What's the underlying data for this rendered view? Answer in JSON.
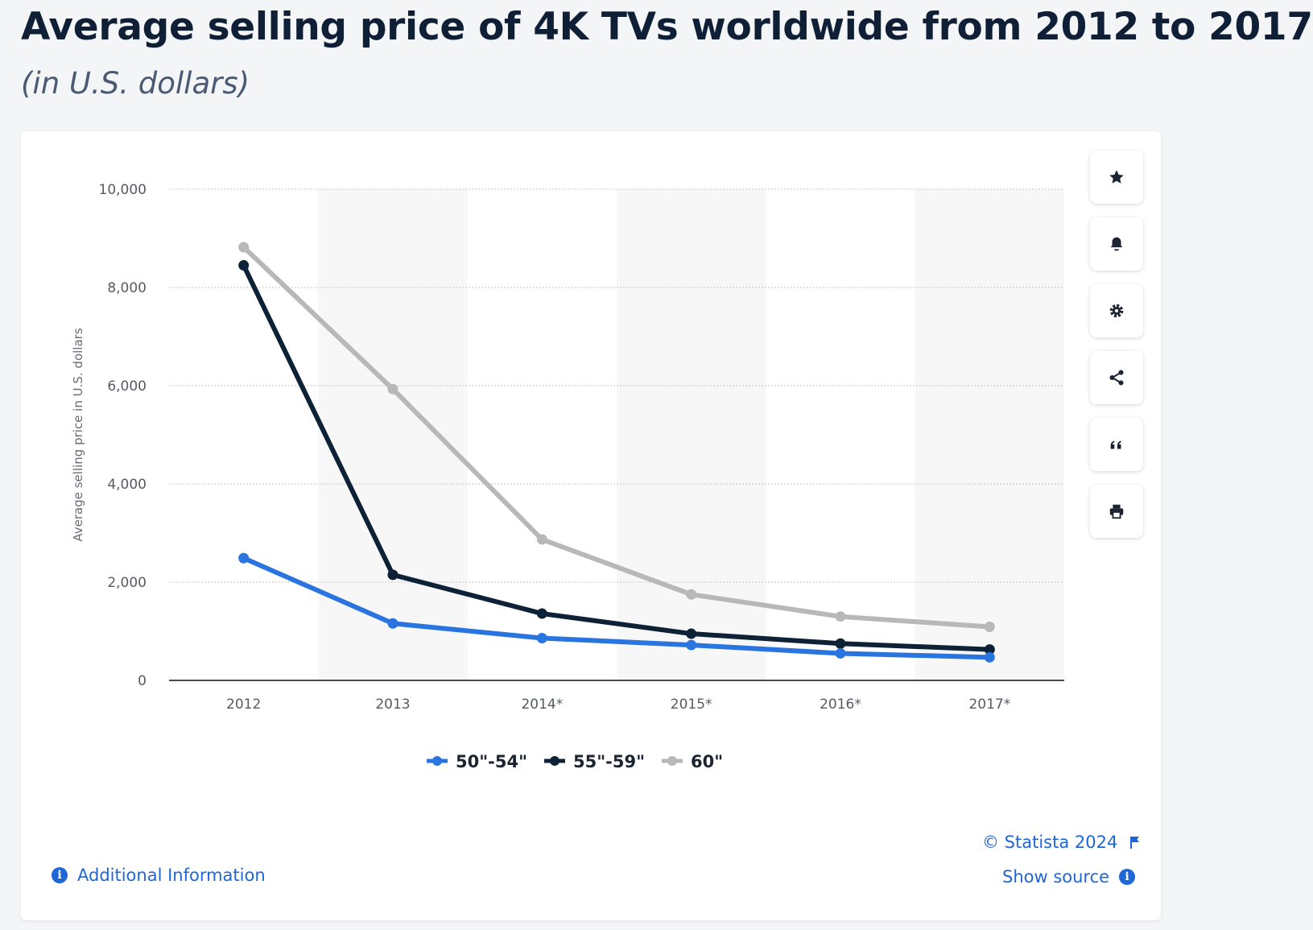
{
  "title": "Average selling price of 4K TVs worldwide from 2012 to 2017",
  "subtitle": "(in U.S. dollars)",
  "chart_data": {
    "type": "line",
    "title": "Average selling price of 4K TVs worldwide from 2012 to 2017",
    "subtitle": "(in U.S. dollars)",
    "xlabel": "",
    "ylabel": "Average selling price in U.S. dollars",
    "categories": [
      "2012",
      "2013",
      "2014*",
      "2015*",
      "2016*",
      "2017*"
    ],
    "y_ticks": [
      "0",
      "2,000",
      "4,000",
      "6,000",
      "8,000",
      "10,000"
    ],
    "ylim": [
      0,
      10000
    ],
    "grid": "horizontal dotted",
    "legend_position": "bottom-center",
    "series": [
      {
        "name": "50\"-54\"",
        "color": "#2a74e0",
        "values": [
          2490,
          1160,
          860,
          720,
          550,
          470
        ]
      },
      {
        "name": "55\"-59\"",
        "color": "#0d2137",
        "values": [
          8450,
          2150,
          1360,
          950,
          750,
          630
        ]
      },
      {
        "name": "60\"",
        "color": "#b8b8b8",
        "values": [
          8820,
          5930,
          2870,
          1750,
          1300,
          1090
        ]
      }
    ]
  },
  "toolbar": {
    "icons": [
      "star-icon",
      "bell-icon",
      "gear-icon",
      "share-icon",
      "quote-icon",
      "print-icon"
    ]
  },
  "footer": {
    "copyright": "© Statista 2024",
    "show_source": "Show source",
    "additional_info": "Additional Information"
  },
  "colors": {
    "accent": "#1f66d6",
    "title": "#0e1f36",
    "subtitle": "#4a5a73"
  }
}
